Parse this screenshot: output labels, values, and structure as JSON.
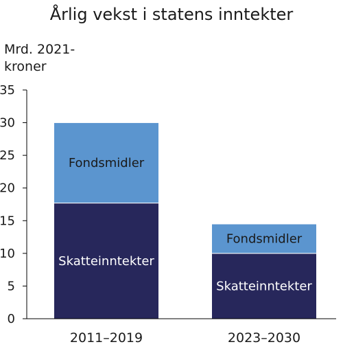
{
  "chart_data": {
    "type": "bar",
    "stacked": true,
    "title": "Årlig vekst i statens inntekter",
    "ylabel_line1": "Mrd. 2021-",
    "ylabel_line2": "kroner",
    "ylim": [
      0,
      35
    ],
    "yticks": [
      0,
      5,
      10,
      15,
      20,
      25,
      30,
      35
    ],
    "categories": [
      "2011–2019",
      "2023–2030"
    ],
    "series": [
      {
        "name": "Skatteinntekter",
        "values": [
          17.7,
          10.0
        ],
        "color": "#27275b",
        "label_color": "#ffffff"
      },
      {
        "name": "Fondsmidler",
        "values": [
          12.3,
          4.5
        ],
        "color": "#5b95cf",
        "label_color": "#1a1a1a"
      }
    ],
    "grid": false,
    "legend": "none"
  }
}
